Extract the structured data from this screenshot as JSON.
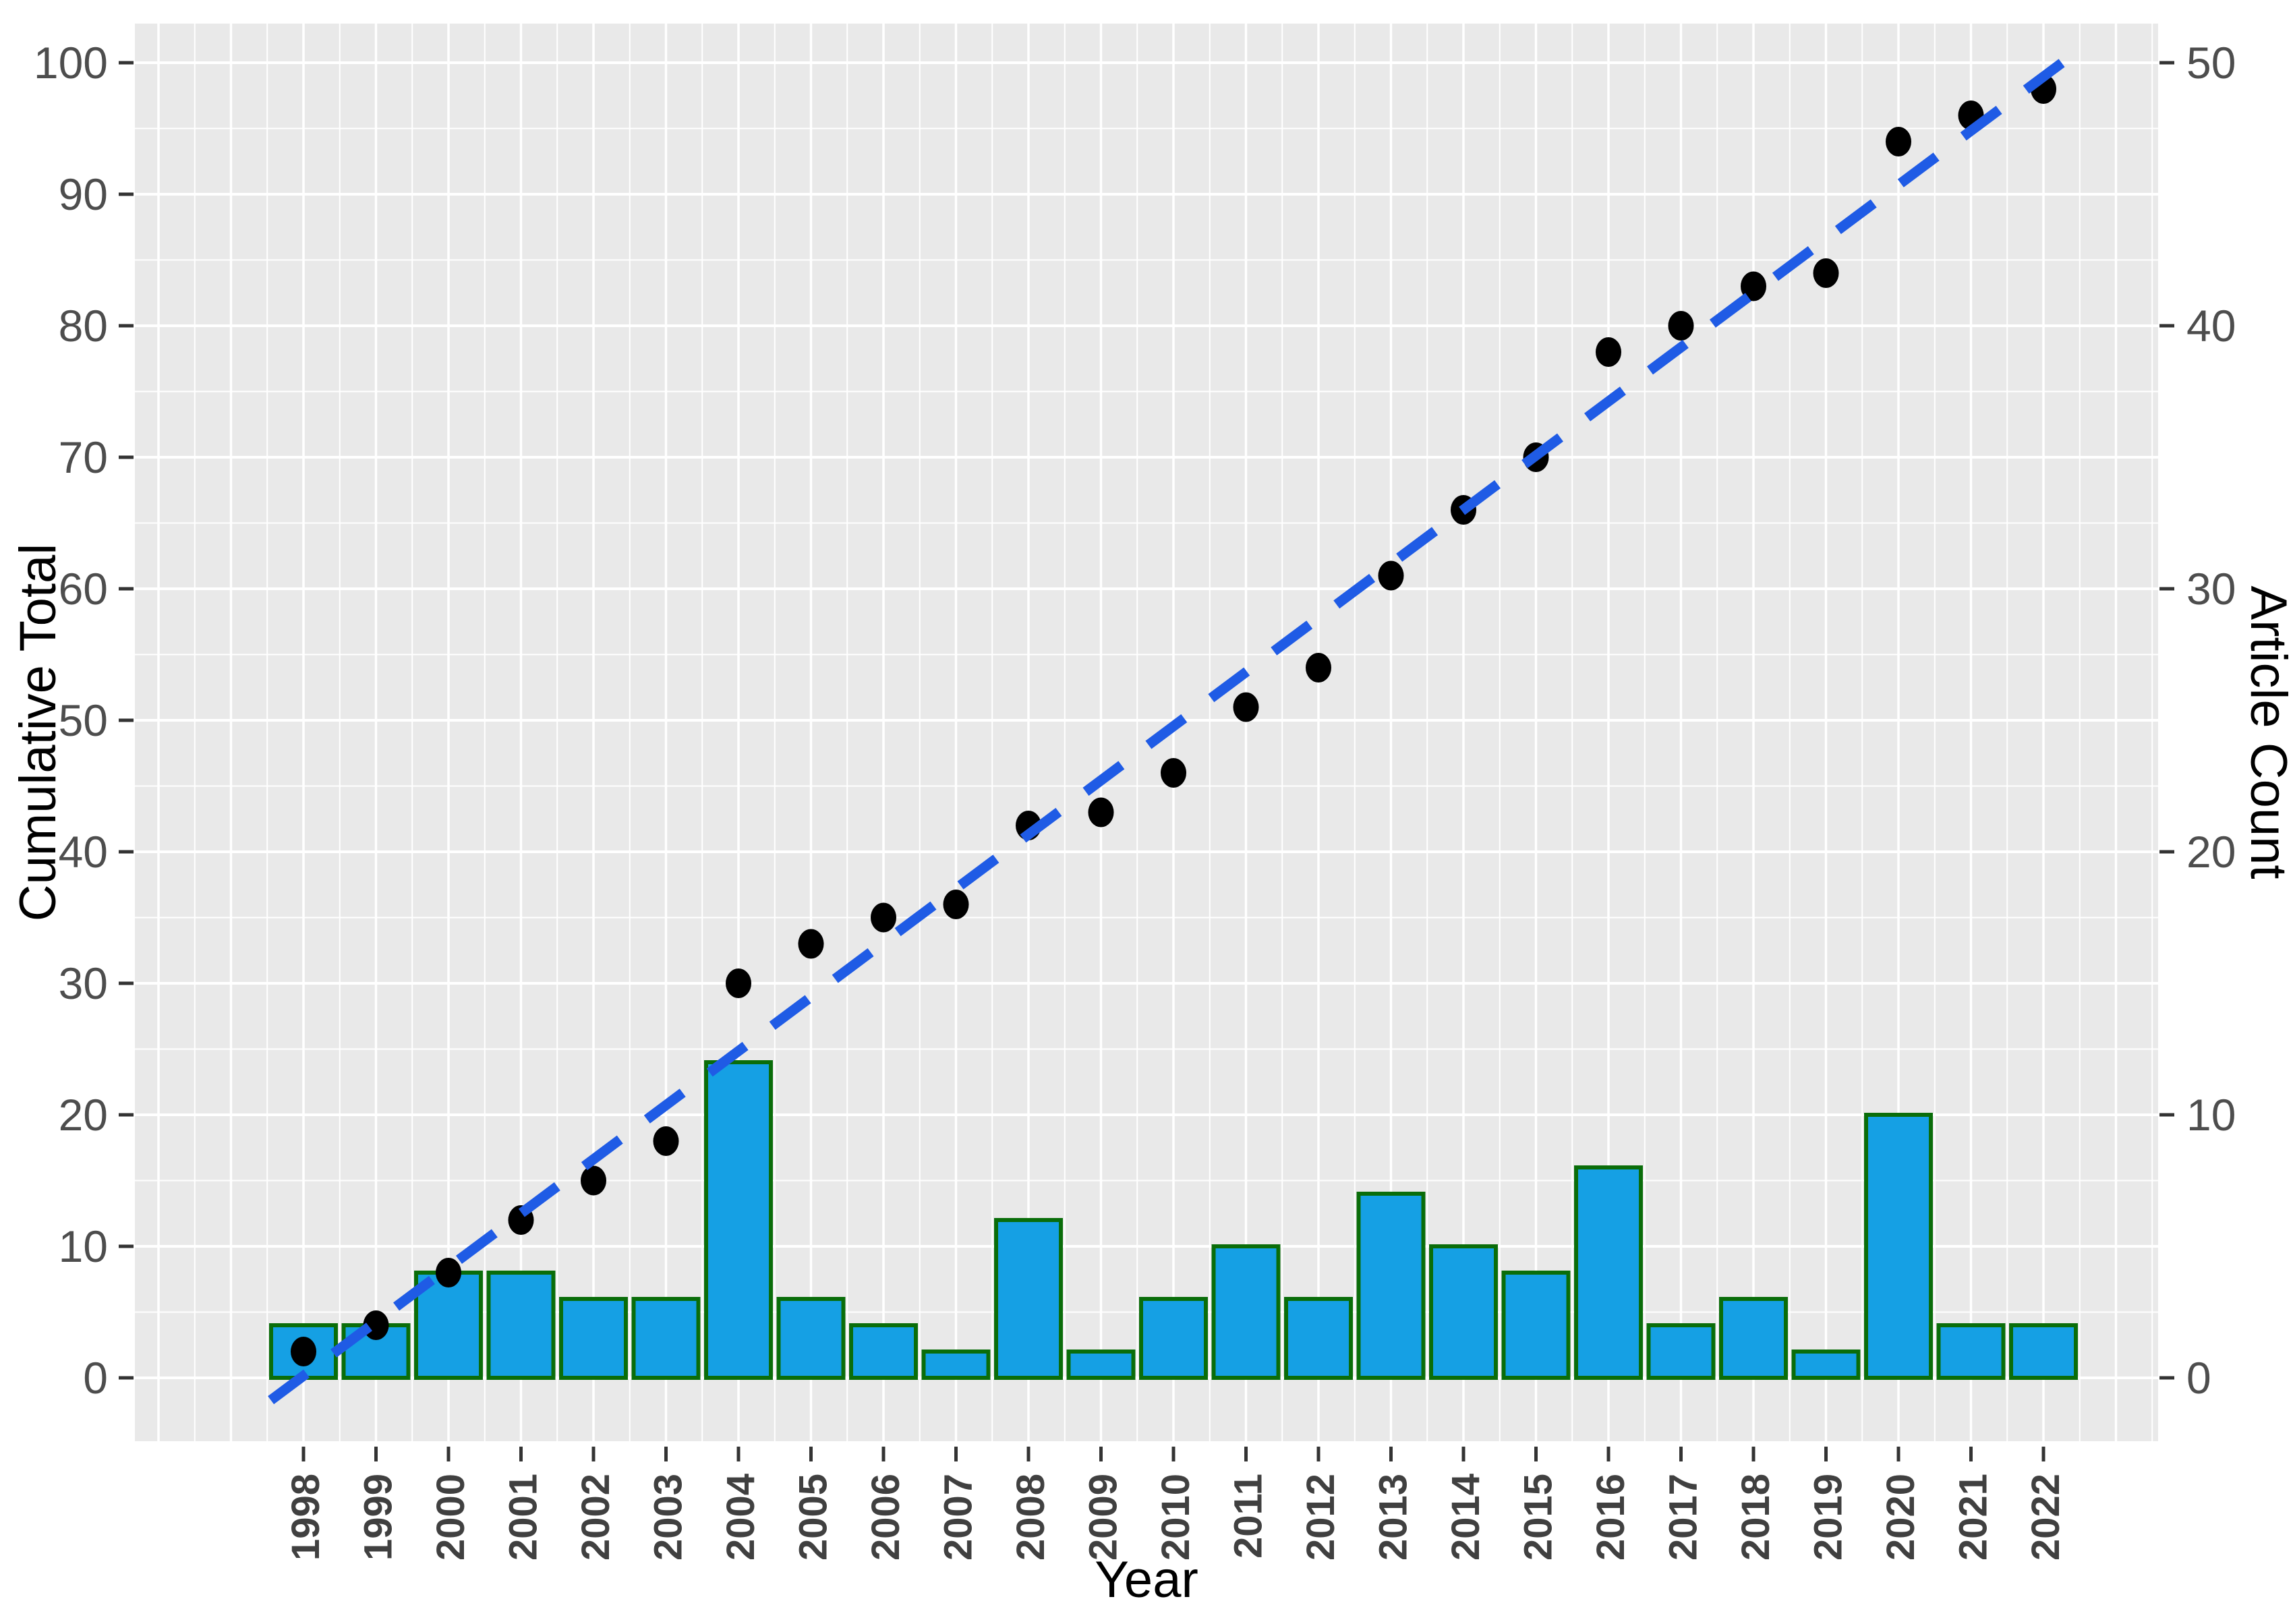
{
  "figure": {
    "x_axis_title": "Year",
    "y_left_axis_title": "Cumulative Total",
    "y_right_axis_title": "Article Count"
  },
  "chart_data": {
    "type": "bar",
    "title": "",
    "xlabel": "Year",
    "ylabel_left": "Cumulative Total",
    "ylabel_right": "Article Count",
    "categories": [
      1998,
      1999,
      2000,
      2001,
      2002,
      2003,
      2004,
      2005,
      2006,
      2007,
      2008,
      2009,
      2010,
      2011,
      2012,
      2013,
      2014,
      2015,
      2016,
      2017,
      2018,
      2019,
      2020,
      2021,
      2022
    ],
    "series": [
      {
        "name": "Article Count",
        "type": "bar",
        "axis": "right",
        "values": [
          2,
          2,
          4,
          4,
          3,
          3,
          12,
          3,
          2,
          1,
          6,
          1,
          3,
          5,
          3,
          7,
          5,
          4,
          8,
          2,
          3,
          1,
          10,
          2,
          2
        ]
      },
      {
        "name": "Cumulative Total",
        "type": "scatter",
        "axis": "left",
        "values": [
          2,
          4,
          8,
          12,
          15,
          18,
          30,
          33,
          35,
          36,
          42,
          43,
          46,
          51,
          54,
          61,
          66,
          70,
          78,
          80,
          83,
          84,
          94,
          96,
          98
        ]
      },
      {
        "name": "Linear trend",
        "type": "line",
        "style": "dashed",
        "axis": "left",
        "endpoints": {
          "year_start": 1997.55,
          "value_start": -1.7,
          "year_end": 2022.5,
          "value_end": 101
        }
      }
    ],
    "ylim_left": [
      0,
      100
    ],
    "ylim_right": [
      0,
      50
    ],
    "yticks_left": [
      0,
      10,
      20,
      30,
      40,
      50,
      60,
      70,
      80,
      90,
      100
    ],
    "yticks_right": [
      0,
      10,
      20,
      30,
      40,
      50
    ],
    "grid": true,
    "legend_position": "none",
    "colors": {
      "bar_fill": "#15A0E4",
      "bar_border": "#0A6D0A",
      "point": "#000000",
      "trend_line": "#1F5BE5",
      "panel_background": "#E9E9E9",
      "gridline": "#FFFFFF",
      "y_tick_label": "#4D4D4D",
      "x_tick_label": "#404040",
      "tick_mark": "#333333"
    }
  }
}
